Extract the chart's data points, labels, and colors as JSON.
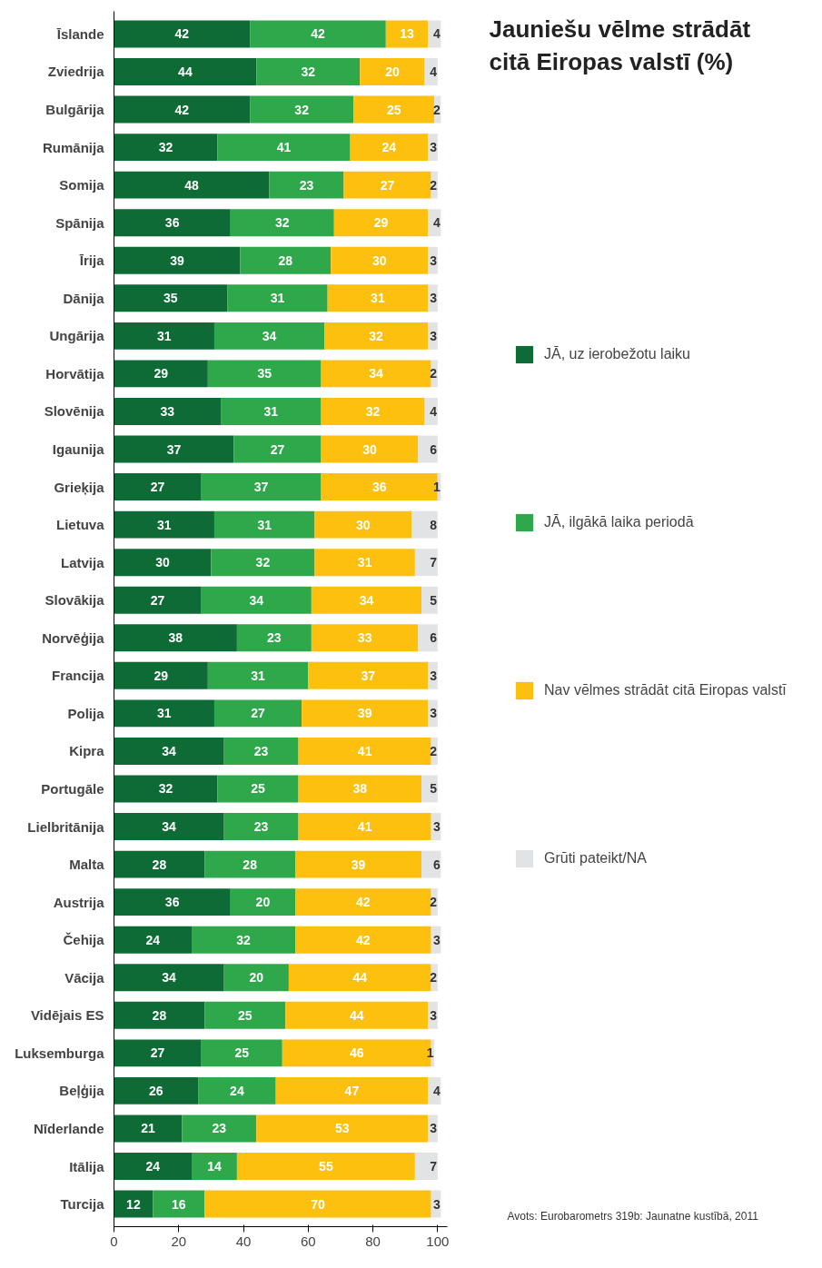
{
  "chart_data": {
    "type": "bar",
    "orientation": "horizontal",
    "stacked": true,
    "title": "Jauniešu vēlme strādāt citā Eiropas valstī (%)",
    "categories": [
      "Īslande",
      "Zviedrija",
      "Bulgārija",
      "Rumānija",
      "Somija",
      "Spānija",
      "Īrija",
      "Dānija",
      "Ungārija",
      "Horvātija",
      "Slovēnija",
      "Igaunija",
      "Grieķija",
      "Lietuva",
      "Latvija",
      "Slovākija",
      "Norvēģija",
      "Francija",
      "Polija",
      "Kipra",
      "Portugāle",
      "Lielbritānija",
      "Malta",
      "Austrija",
      "Čehija",
      "Vācija",
      "Vidējais ES",
      "Luksemburga",
      "Beļģija",
      "Nīderlande",
      "Itālija",
      "Turcija"
    ],
    "series": [
      {
        "name": "JĀ, uz ierobežotu laiku",
        "color": "#0e6b36",
        "values": [
          42,
          44,
          42,
          32,
          48,
          36,
          39,
          35,
          31,
          29,
          33,
          37,
          27,
          31,
          30,
          27,
          38,
          29,
          31,
          34,
          32,
          34,
          28,
          36,
          24,
          34,
          28,
          27,
          26,
          21,
          24,
          12
        ]
      },
      {
        "name": "JĀ, ilgākā laika periodā",
        "color": "#2ea84a",
        "values": [
          42,
          32,
          32,
          41,
          23,
          32,
          28,
          31,
          34,
          35,
          31,
          27,
          37,
          31,
          32,
          34,
          23,
          31,
          27,
          23,
          25,
          23,
          28,
          20,
          32,
          20,
          25,
          25,
          24,
          23,
          14,
          16
        ]
      },
      {
        "name": "Nav vēlmes strādāt citā Eiropas valstī",
        "color": "#fdc00f",
        "values": [
          13,
          20,
          25,
          24,
          27,
          29,
          30,
          31,
          32,
          34,
          32,
          30,
          36,
          30,
          31,
          34,
          33,
          37,
          39,
          41,
          38,
          41,
          39,
          42,
          42,
          44,
          44,
          46,
          47,
          53,
          55,
          70
        ]
      },
      {
        "name": "Grūti pateikt/NA",
        "color": "#e2e3e4",
        "values": [
          4,
          4,
          2,
          3,
          2,
          4,
          3,
          3,
          3,
          2,
          4,
          6,
          1,
          8,
          7,
          5,
          6,
          3,
          3,
          2,
          5,
          3,
          6,
          2,
          3,
          2,
          3,
          1,
          4,
          3,
          7,
          3
        ]
      }
    ],
    "xlim": [
      0,
      103
    ],
    "xticks": [
      0,
      20,
      40,
      60,
      80,
      100
    ],
    "data_labels": true,
    "legend": "right",
    "grid": false,
    "annotations": [
      "Avots: Eurobarometrs 319b: Jaunatne kustībā, 2011"
    ]
  }
}
